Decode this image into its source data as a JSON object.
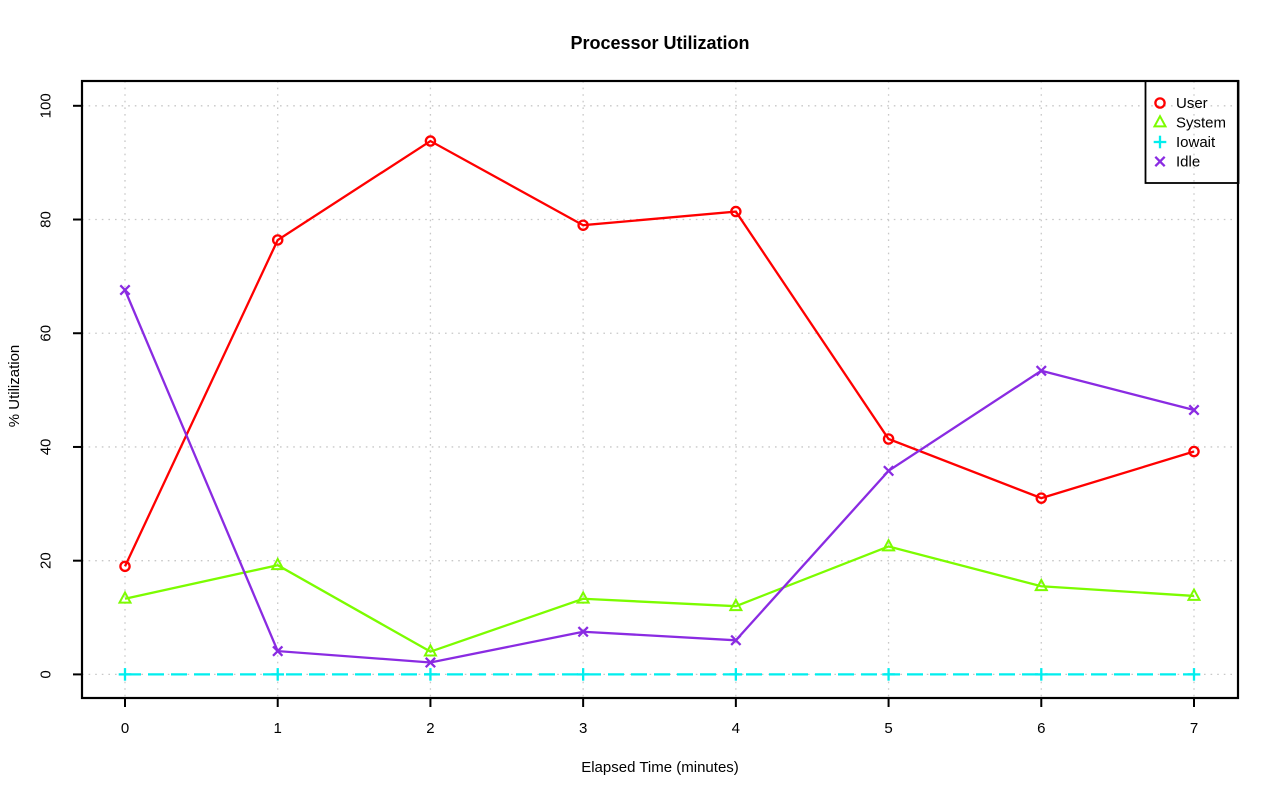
{
  "chart_data": {
    "type": "line",
    "title": "Processor Utilization",
    "xlabel": "Elapsed Time (minutes)",
    "ylabel": "% Utilization",
    "xlim": [
      0,
      7
    ],
    "ylim": [
      0,
      100
    ],
    "x_ticks": [
      0,
      1,
      2,
      3,
      4,
      5,
      6,
      7
    ],
    "y_ticks": [
      0,
      20,
      40,
      60,
      80,
      100
    ],
    "grid": true,
    "grid_color": "#c8c8c8",
    "axis_color": "#000000",
    "legend_position": "top-right",
    "x": [
      0,
      1,
      2,
      3,
      4,
      5,
      6,
      7
    ],
    "series": [
      {
        "name": "User",
        "color": "#ff0000",
        "marker": "circle",
        "line_style": "solid",
        "values": [
          19.0,
          76.4,
          93.8,
          79.0,
          81.4,
          41.4,
          31.0,
          39.2
        ]
      },
      {
        "name": "System",
        "color": "#7cfc00",
        "marker": "triangle",
        "line_style": "solid",
        "values": [
          13.3,
          19.2,
          4.0,
          13.3,
          12.0,
          22.5,
          15.5,
          13.8
        ]
      },
      {
        "name": "Iowait",
        "color": "#00eeee",
        "marker": "plus",
        "line_style": "dashed",
        "values": [
          0,
          0,
          0,
          0,
          0,
          0,
          0,
          0
        ]
      },
      {
        "name": "Idle",
        "color": "#8a2be2",
        "marker": "x",
        "line_style": "solid",
        "values": [
          67.6,
          4.1,
          2.1,
          7.5,
          6.0,
          35.8,
          53.4,
          46.5
        ]
      }
    ]
  }
}
